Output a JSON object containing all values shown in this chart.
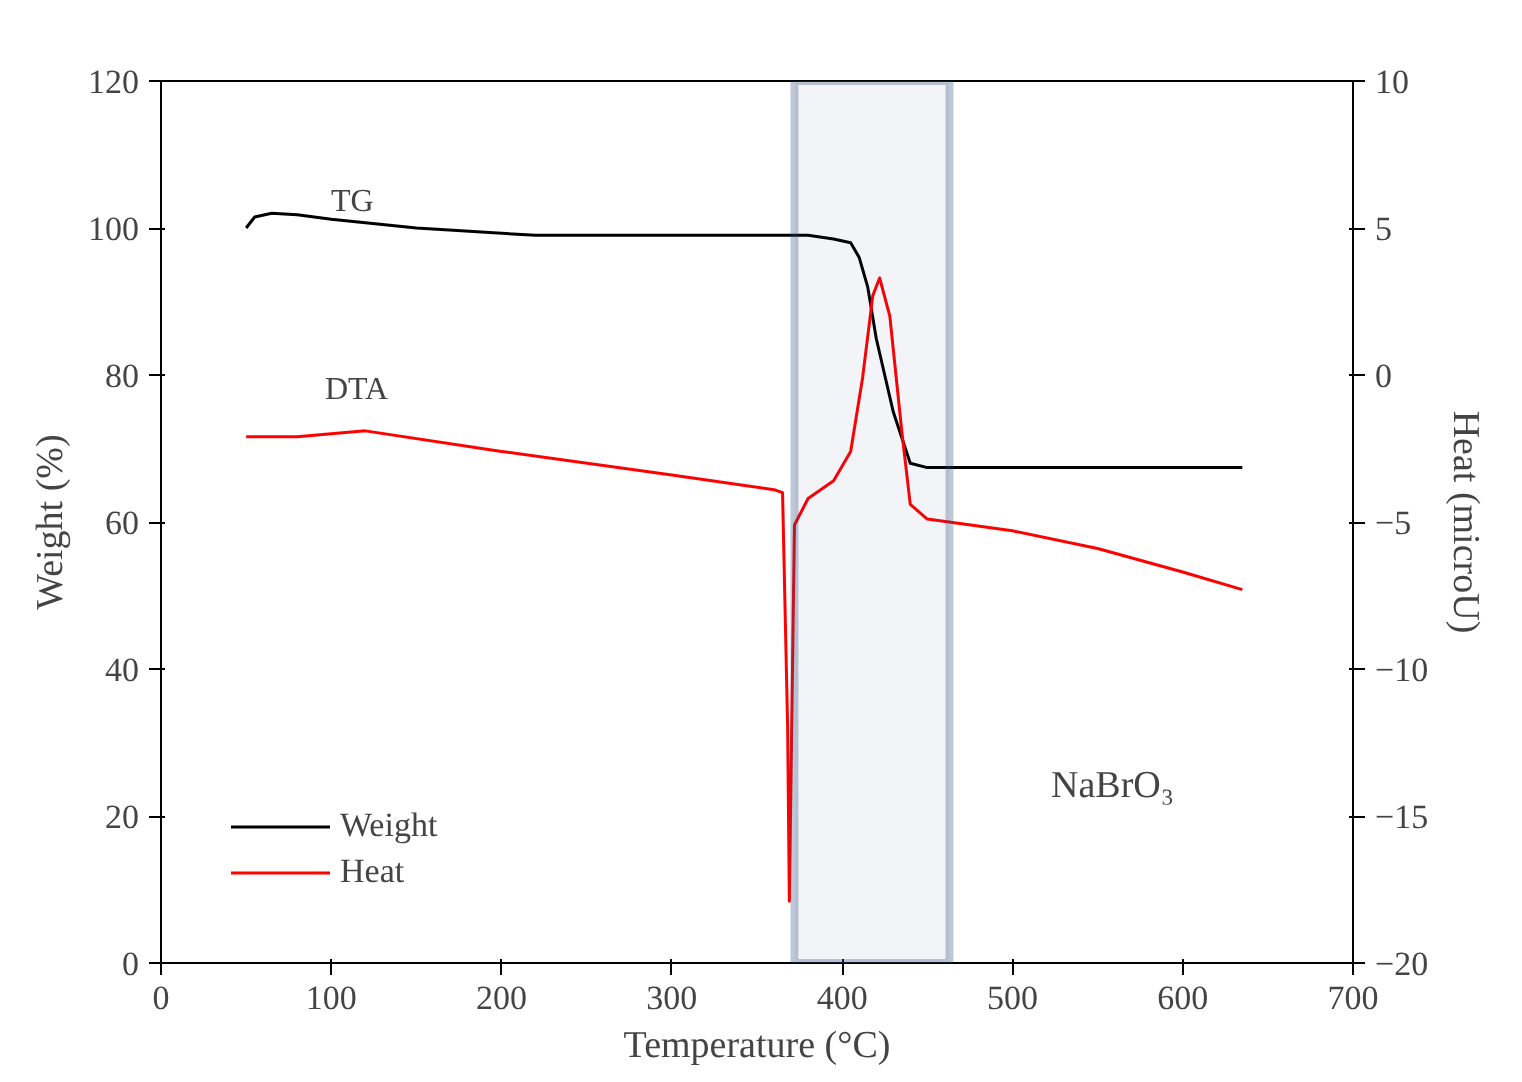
{
  "chart_data": {
    "type": "line",
    "xlabel": "Temperature (°C)",
    "ylabel": "Weight (%)",
    "y2label": "Heat (microU)",
    "xlim": [
      0,
      700
    ],
    "xticks": [
      0,
      100,
      200,
      300,
      400,
      500,
      600,
      700
    ],
    "ylim": [
      0,
      120
    ],
    "yticks": [
      0,
      20,
      40,
      60,
      80,
      100,
      120
    ],
    "y2lim": [
      -20,
      10
    ],
    "y2ticks": [
      -20,
      -15,
      -10,
      -5,
      0,
      5,
      10
    ],
    "grid": false,
    "legend": "bottom left",
    "line_style": "solid",
    "marker": "none",
    "series": [
      {
        "name": "Weight",
        "color": "#000000",
        "x": [
          50,
          55,
          65,
          80,
          100,
          150,
          220,
          300,
          380,
          395,
          405,
          410,
          415,
          420,
          430,
          440,
          450,
          500,
          600,
          635
        ],
        "values": [
          100,
          101.5,
          102,
          101.8,
          101.2,
          100,
          99,
          99,
          99,
          98.5,
          98,
          96,
          92,
          85,
          75,
          68,
          67.4,
          67.4,
          67.4,
          67.4
        ]
      },
      {
        "name": "Heat",
        "color": "#ff0000",
        "axis": "y2",
        "x": [
          50,
          80,
          120,
          200,
          300,
          360,
          365,
          368,
          369,
          372,
          380,
          395,
          405,
          412,
          418,
          422,
          428,
          435,
          440,
          450,
          500,
          550,
          600,
          635
        ],
        "values": [
          -2.1,
          -2.1,
          -1.9,
          -2.6,
          -3.4,
          -3.9,
          -4.0,
          -12,
          -17.9,
          -5.1,
          -4.2,
          -3.6,
          -2.6,
          -0.1,
          2.7,
          3.3,
          2.0,
          -1.9,
          -4.4,
          -4.9,
          -5.3,
          -5.9,
          -6.7,
          -7.3
        ]
      }
    ],
    "bands": [
      {
        "axis": "x",
        "from": 372,
        "to": 463,
        "color": "#2e4a7a"
      }
    ],
    "annotations": [
      "TG",
      "DTA",
      "NaBrO₃"
    ]
  }
}
